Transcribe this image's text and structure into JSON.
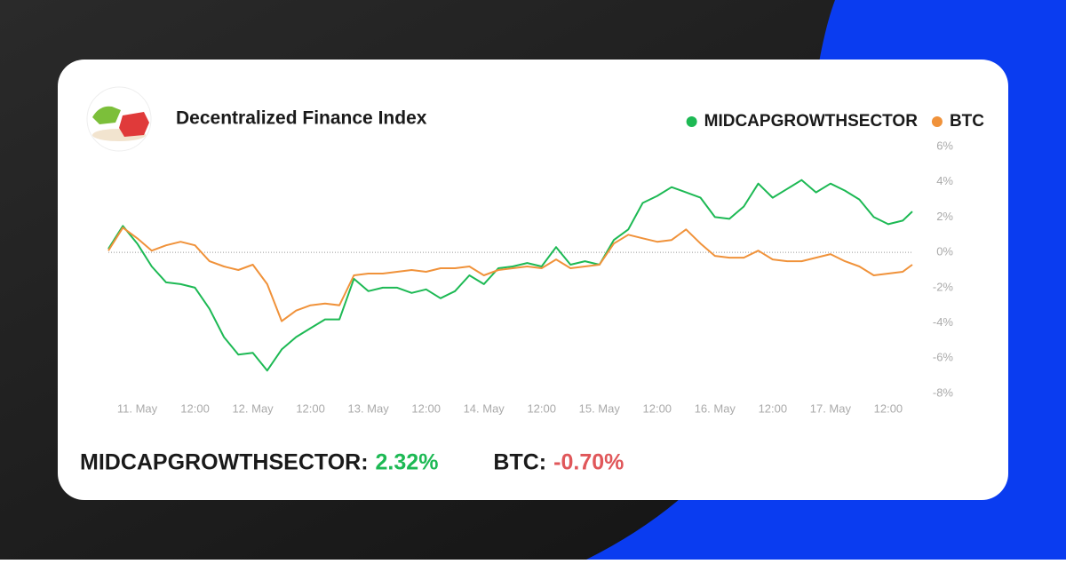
{
  "chart_data": {
    "type": "line",
    "title": "Decentralized Finance Index",
    "x": [
      -6,
      -3,
      0,
      3,
      6,
      9,
      12,
      15,
      18,
      21,
      24,
      27,
      30,
      33,
      36,
      39,
      42,
      45,
      48,
      51,
      54,
      57,
      60,
      63,
      66,
      69,
      72,
      75,
      78,
      81,
      84,
      87,
      90,
      93,
      96,
      99,
      102,
      105,
      108,
      111,
      114,
      117,
      120,
      123,
      126,
      129,
      132,
      135,
      138,
      141,
      144,
      147,
      150,
      153,
      156,
      159,
      161
    ],
    "series": [
      {
        "name": "MIDCAPGROWTHSECTOR",
        "color": "#1db954",
        "values": [
          0.2,
          1.5,
          0.5,
          -0.8,
          -1.7,
          -1.8,
          -2.0,
          -3.2,
          -4.8,
          -5.8,
          -5.7,
          -6.7,
          -5.5,
          -4.8,
          -4.3,
          -3.8,
          -3.8,
          -1.5,
          -2.2,
          -2.0,
          -2.0,
          -2.3,
          -2.1,
          -2.6,
          -2.2,
          -1.3,
          -1.8,
          -0.9,
          -0.8,
          -0.6,
          -0.8,
          0.3,
          -0.7,
          -0.5,
          -0.7,
          0.7,
          1.3,
          2.8,
          3.2,
          3.7,
          3.4,
          3.1,
          2.0,
          1.9,
          2.6,
          3.9,
          3.1,
          3.6,
          4.1,
          3.4,
          3.9,
          3.5,
          3.0,
          2.0,
          1.6,
          1.8,
          2.32
        ]
      },
      {
        "name": "BTC",
        "color": "#f0923a",
        "values": [
          0.1,
          1.4,
          0.8,
          0.1,
          0.4,
          0.6,
          0.4,
          -0.5,
          -0.8,
          -1.0,
          -0.7,
          -1.8,
          -3.9,
          -3.3,
          -3.0,
          -2.9,
          -3.0,
          -1.3,
          -1.2,
          -1.2,
          -1.1,
          -1.0,
          -1.1,
          -0.9,
          -0.9,
          -0.8,
          -1.3,
          -1.0,
          -0.9,
          -0.8,
          -0.9,
          -0.4,
          -0.9,
          -0.8,
          -0.7,
          0.5,
          1.0,
          0.8,
          0.6,
          0.7,
          1.3,
          0.5,
          -0.2,
          -0.3,
          -0.3,
          0.1,
          -0.4,
          -0.5,
          -0.5,
          -0.3,
          -0.1,
          -0.5,
          -0.8,
          -1.3,
          -1.2,
          -1.1,
          -0.7
        ]
      }
    ],
    "xlim": [
      -6,
      161
    ],
    "xticks": [
      {
        "value": 0,
        "label": "11. May"
      },
      {
        "value": 12,
        "label": "12:00"
      },
      {
        "value": 24,
        "label": "12. May"
      },
      {
        "value": 36,
        "label": "12:00"
      },
      {
        "value": 48,
        "label": "13. May"
      },
      {
        "value": 60,
        "label": "12:00"
      },
      {
        "value": 72,
        "label": "14. May"
      },
      {
        "value": 84,
        "label": "12:00"
      },
      {
        "value": 96,
        "label": "15. May"
      },
      {
        "value": 108,
        "label": "12:00"
      },
      {
        "value": 120,
        "label": "16. May"
      },
      {
        "value": 132,
        "label": "12:00"
      },
      {
        "value": 144,
        "label": "17. May"
      },
      {
        "value": 156,
        "label": "12:00"
      }
    ],
    "ylim": [
      -8,
      6
    ],
    "yticks": [
      {
        "value": 6,
        "label": "6%"
      },
      {
        "value": 4,
        "label": "4%"
      },
      {
        "value": 2,
        "label": "2%"
      },
      {
        "value": 0,
        "label": "0%"
      },
      {
        "value": -2,
        "label": "-2%"
      },
      {
        "value": -4,
        "label": "-4%"
      },
      {
        "value": -6,
        "label": "-6%"
      },
      {
        "value": -8,
        "label": "-8%"
      }
    ],
    "zero_line": true,
    "legend": "top-right",
    "summary": [
      {
        "label": "MIDCAPGROWTHSECTOR:",
        "value": "2.32%",
        "color": "#1db954"
      },
      {
        "label": "BTC:",
        "value": "-0.70%",
        "color": "#e0575a"
      }
    ]
  }
}
